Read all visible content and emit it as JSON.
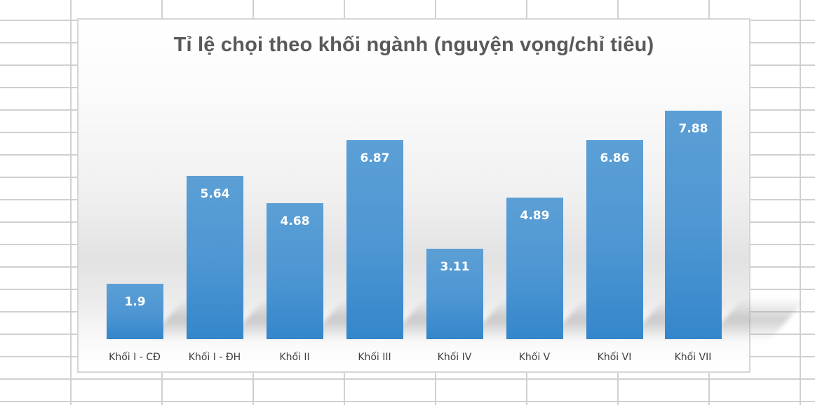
{
  "chart_data": {
    "type": "bar",
    "title": "Tỉ lệ chọi theo khối ngành (nguyện vọng/chỉ tiêu)",
    "categories": [
      "Khối I - CĐ",
      "Khối I - ĐH",
      "Khối II",
      "Khối III",
      "Khối IV",
      "Khối V",
      "Khối VI",
      "Khối VII"
    ],
    "values": [
      1.9,
      5.64,
      4.68,
      6.87,
      3.11,
      4.89,
      6.86,
      7.88
    ],
    "value_labels": [
      "1.9",
      "5.64",
      "4.68",
      "6.87",
      "3.11",
      "4.89",
      "6.86",
      "7.88"
    ],
    "xlabel": "",
    "ylabel": "",
    "ylim": [
      0,
      8.5
    ],
    "grid": false,
    "legend": "none",
    "bar_color": "#4f97d3"
  }
}
